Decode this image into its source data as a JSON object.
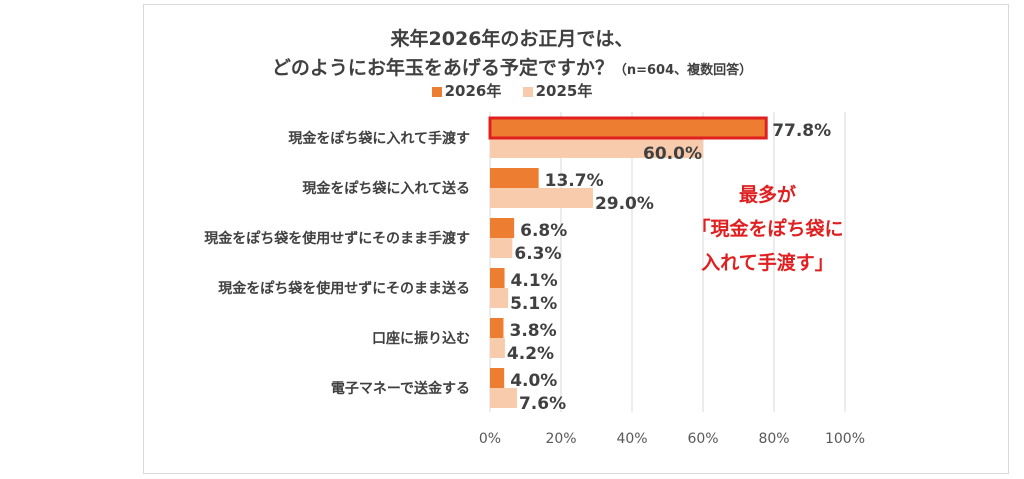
{
  "chart_data": {
    "type": "bar",
    "orientation": "horizontal",
    "title": "来年2026年のお正月では、",
    "subtitle": "どのようにお年玉をあげる予定ですか？",
    "subtitle_note": "（n=604、複数回答）",
    "categories": [
      "現金をぽち袋に入れて手渡す",
      "現金をぽち袋に入れて送る",
      "現金をぽち袋を使用せずにそのまま手渡す",
      "現金をぽち袋を使用せずにそのまま送る",
      "口座に振り込む",
      "電子マネーで送金する"
    ],
    "series": [
      {
        "name": "2026年",
        "color": "#ed7d31",
        "values": [
          77.8,
          13.7,
          6.8,
          4.1,
          3.8,
          4.0
        ],
        "labels": [
          "77.8%",
          "13.7%",
          "6.8%",
          "4.1%",
          "3.8%",
          "4.0%"
        ]
      },
      {
        "name": "2025年",
        "color": "#f8cbad",
        "values": [
          60.0,
          29.0,
          6.3,
          5.1,
          4.2,
          7.6
        ],
        "labels": [
          "60.0%",
          "29.0%",
          "6.3%",
          "5.1%",
          "4.2%",
          "7.6%"
        ]
      }
    ],
    "xlim": [
      0,
      100
    ],
    "xticks": [
      "0%",
      "20%",
      "40%",
      "60%",
      "80%",
      "100%"
    ],
    "grid": true,
    "legend_position": "top",
    "highlight": {
      "category_index": 0,
      "series_index": 0,
      "outline_color": "#e02020"
    },
    "annotation": {
      "lines": [
        "最多が",
        "「現金をぽち袋に",
        "入れて手渡す」"
      ],
      "color": "#e02020"
    }
  }
}
